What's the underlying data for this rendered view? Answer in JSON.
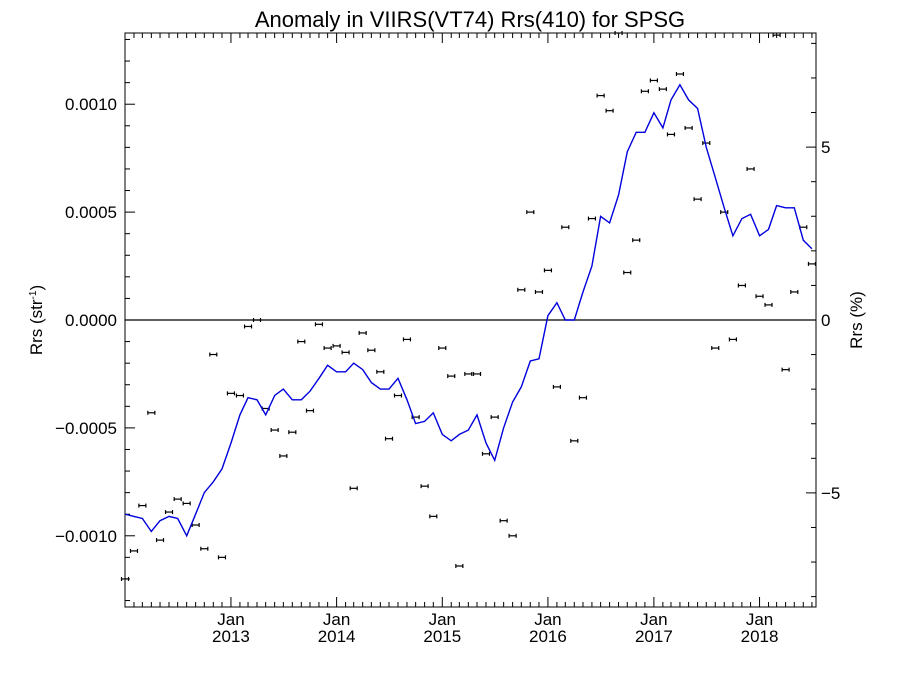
{
  "chart_data": {
    "type": "line",
    "title": "Anomaly in VIIRS(VT74) Rrs(410) for SPSG",
    "ylabel": "Rrs (str",
    "ylabel_sup": "-1",
    "ylabel_close": ")",
    "y2label": "Rrs (%)",
    "xlim": [
      "2012-01-01",
      "2018-07-15"
    ],
    "ylim": [
      -0.00133,
      0.00133
    ],
    "y2lim": [
      -8.3,
      8.3
    ],
    "grid": false,
    "zero_line": true,
    "x_ticks": [
      {
        "date": "2013-01-01",
        "month": "Jan",
        "year": "2013"
      },
      {
        "date": "2014-01-01",
        "month": "Jan",
        "year": "2014"
      },
      {
        "date": "2015-01-01",
        "month": "Jan",
        "year": "2015"
      },
      {
        "date": "2016-01-01",
        "month": "Jan",
        "year": "2016"
      },
      {
        "date": "2017-01-01",
        "month": "Jan",
        "year": "2017"
      },
      {
        "date": "2018-01-01",
        "month": "Jan",
        "year": "2018"
      }
    ],
    "y_ticks": [
      {
        "value": 0.001,
        "label": "0.0010"
      },
      {
        "value": 0.0005,
        "label": "0.0005"
      },
      {
        "value": 0.0,
        "label": "0.0000"
      },
      {
        "value": -0.0005,
        "label": "−0.0005"
      },
      {
        "value": -0.001,
        "label": "−0.0010"
      }
    ],
    "y2_ticks": [
      {
        "value": 5,
        "label": "5"
      },
      {
        "value": 0,
        "label": "0"
      },
      {
        "value": -5,
        "label": "−5"
      }
    ],
    "series": [
      {
        "kind": "line",
        "color": "#0000dd",
        "x": [
          "2012-01-01",
          "2012-02-01",
          "2012-03-01",
          "2012-04-01",
          "2012-05-01",
          "2012-06-01",
          "2012-07-01",
          "2012-08-01",
          "2012-09-01",
          "2012-10-01",
          "2012-11-01",
          "2012-12-01",
          "2013-01-01",
          "2013-02-01",
          "2013-03-01",
          "2013-04-01",
          "2013-05-01",
          "2013-06-01",
          "2013-07-01",
          "2013-08-01",
          "2013-09-01",
          "2013-10-01",
          "2013-11-01",
          "2013-12-01",
          "2014-01-01",
          "2014-02-01",
          "2014-03-01",
          "2014-04-01",
          "2014-05-01",
          "2014-06-01",
          "2014-07-01",
          "2014-08-01",
          "2014-09-01",
          "2014-10-01",
          "2014-11-01",
          "2014-12-01",
          "2015-01-01",
          "2015-02-01",
          "2015-03-01",
          "2015-04-01",
          "2015-05-01",
          "2015-06-01",
          "2015-07-01",
          "2015-08-01",
          "2015-09-01",
          "2015-10-01",
          "2015-11-01",
          "2015-12-01",
          "2016-01-01",
          "2016-02-01",
          "2016-03-01",
          "2016-04-01",
          "2016-05-01",
          "2016-06-01",
          "2016-07-01",
          "2016-08-01",
          "2016-09-01",
          "2016-10-01",
          "2016-11-01",
          "2016-12-01",
          "2017-01-01",
          "2017-02-01",
          "2017-03-01",
          "2017-04-01",
          "2017-05-01",
          "2017-06-01",
          "2017-07-01",
          "2017-08-01",
          "2017-09-01",
          "2017-10-01",
          "2017-11-01",
          "2017-12-01",
          "2018-01-01",
          "2018-02-01",
          "2018-03-01",
          "2018-04-01",
          "2018-05-01",
          "2018-06-01",
          "2018-07-01"
        ],
        "y": [
          -0.0009,
          -0.00091,
          -0.00092,
          -0.00098,
          -0.00093,
          -0.00091,
          -0.00092,
          -0.001,
          -0.0009,
          -0.0008,
          -0.00075,
          -0.00069,
          -0.00057,
          -0.00044,
          -0.00036,
          -0.00037,
          -0.00044,
          -0.00035,
          -0.00032,
          -0.00037,
          -0.00037,
          -0.00033,
          -0.00027,
          -0.00021,
          -0.00024,
          -0.00024,
          -0.0002,
          -0.00023,
          -0.00029,
          -0.00032,
          -0.00032,
          -0.00027,
          -0.00037,
          -0.00048,
          -0.00047,
          -0.00043,
          -0.00053,
          -0.00056,
          -0.00053,
          -0.00051,
          -0.00044,
          -0.00057,
          -0.00065,
          -0.0005,
          -0.00038,
          -0.00031,
          -0.00019,
          -0.00018,
          2e-05,
          8e-05,
          0.0,
          0.0,
          0.00013,
          0.00025,
          0.00048,
          0.00045,
          0.00058,
          0.00078,
          0.00087,
          0.00087,
          0.00096,
          0.00089,
          0.00102,
          0.00109,
          0.00102,
          0.00098,
          0.0008,
          0.00066,
          0.00052,
          0.00039,
          0.00047,
          0.00049,
          0.00039,
          0.00042,
          0.00053,
          0.00052,
          0.00052,
          0.00037,
          0.00033
        ]
      },
      {
        "kind": "errorbar_points",
        "color": "#000000",
        "x": [
          "2012-01-01",
          "2012-02-01",
          "2012-03-01",
          "2012-04-01",
          "2012-05-01",
          "2012-06-01",
          "2012-07-01",
          "2012-08-01",
          "2012-09-01",
          "2012-10-01",
          "2012-11-01",
          "2012-12-01",
          "2013-01-01",
          "2013-02-01",
          "2013-03-01",
          "2013-04-01",
          "2013-05-01",
          "2013-06-01",
          "2013-07-01",
          "2013-08-01",
          "2013-09-01",
          "2013-10-01",
          "2013-11-01",
          "2013-12-01",
          "2014-01-01",
          "2014-02-01",
          "2014-03-01",
          "2014-04-01",
          "2014-05-01",
          "2014-06-01",
          "2014-07-01",
          "2014-08-01",
          "2014-09-01",
          "2014-10-01",
          "2014-11-01",
          "2014-12-01",
          "2015-01-01",
          "2015-02-01",
          "2015-03-01",
          "2015-04-01",
          "2015-05-01",
          "2015-06-01",
          "2015-07-01",
          "2015-08-01",
          "2015-09-01",
          "2015-10-01",
          "2015-11-01",
          "2015-12-01",
          "2016-01-01",
          "2016-02-01",
          "2016-03-01",
          "2016-04-01",
          "2016-05-01",
          "2016-06-01",
          "2016-07-01",
          "2016-08-01",
          "2016-09-01",
          "2016-10-01",
          "2016-11-01",
          "2016-12-01",
          "2017-01-01",
          "2017-02-01",
          "2017-03-01",
          "2017-04-01",
          "2017-05-01",
          "2017-06-01",
          "2017-07-01",
          "2017-08-01",
          "2017-09-01",
          "2017-10-01",
          "2017-11-01",
          "2017-12-01",
          "2018-01-01",
          "2018-02-01",
          "2018-03-01",
          "2018-04-01",
          "2018-05-01",
          "2018-06-01",
          "2018-07-01"
        ],
        "y": [
          -0.0012,
          -0.00107,
          -0.00086,
          -0.00043,
          -0.00102,
          -0.00089,
          -0.00083,
          -0.00085,
          -0.00095,
          -0.00106,
          -0.00016,
          -0.0011,
          -0.00034,
          -0.00035,
          -3e-05,
          0.0,
          -0.00041,
          -0.00051,
          -0.00063,
          -0.00052,
          -0.0001,
          -0.00042,
          -2e-05,
          -0.00013,
          -0.00012,
          -0.00015,
          -0.00078,
          -6e-05,
          -0.00014,
          -0.00024,
          -0.00055,
          -0.00035,
          -9e-05,
          -0.00045,
          -0.00077,
          -0.00091,
          -0.00013,
          -0.00026,
          -0.00114,
          -0.00025,
          -0.00025,
          -0.00062,
          -0.00045,
          -0.00093,
          -0.001,
          0.00014,
          0.0005,
          0.00013,
          0.00023,
          -0.00031,
          0.00043,
          -0.00056,
          -0.00036,
          0.00047,
          0.00104,
          0.00097,
          0.00133,
          0.00022,
          0.00037,
          0.00106,
          0.00111,
          0.00107,
          0.00086,
          0.00114,
          0.00089,
          0.00056,
          0.00082,
          -0.00013,
          0.0005,
          -9e-05,
          0.00016,
          0.0007,
          0.00011,
          7e-05,
          0.00132,
          -0.00023,
          0.00013,
          0.00043,
          0.00026
        ]
      }
    ]
  }
}
